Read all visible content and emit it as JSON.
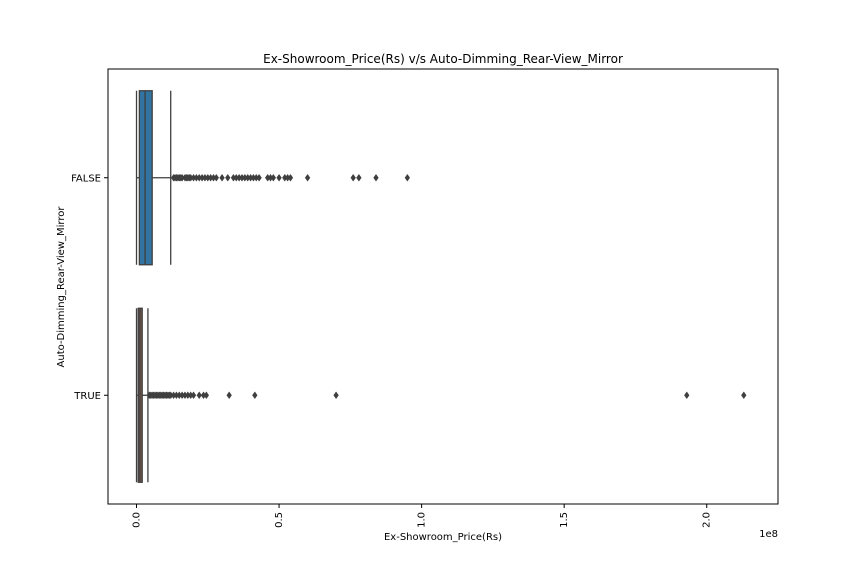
{
  "chart_data": {
    "type": "boxplot",
    "orientation": "horizontal",
    "title": "Ex-Showroom_Price(Rs) v/s Auto-Dimming_Rear-View_Mirror",
    "xlabel": "Ex-Showroom_Price(Rs)",
    "ylabel": "Auto-Dimming_Rear-View_Mirror",
    "x_offset_label": "1e8",
    "xlim": [
      -0.1,
      2.25
    ],
    "x_ticks": [
      {
        "value": 0.0,
        "label": "0.0"
      },
      {
        "value": 0.5,
        "label": "0.5"
      },
      {
        "value": 1.0,
        "label": "1.0"
      },
      {
        "value": 1.5,
        "label": "1.5"
      },
      {
        "value": 2.0,
        "label": "2.0"
      }
    ],
    "grid": false,
    "categories": [
      "FALSE",
      "TRUE"
    ],
    "series": [
      {
        "category": "FALSE",
        "color": "#3274a1",
        "whisker_low": 0.0,
        "q1": 0.01,
        "median": 0.03,
        "q3": 0.055,
        "whisker_high": 0.12,
        "outliers": [
          0.13,
          0.135,
          0.14,
          0.145,
          0.15,
          0.155,
          0.16,
          0.17,
          0.175,
          0.18,
          0.185,
          0.19,
          0.2,
          0.21,
          0.22,
          0.23,
          0.24,
          0.25,
          0.26,
          0.27,
          0.28,
          0.3,
          0.32,
          0.34,
          0.35,
          0.36,
          0.37,
          0.38,
          0.39,
          0.4,
          0.41,
          0.42,
          0.43,
          0.46,
          0.47,
          0.48,
          0.5,
          0.52,
          0.53,
          0.54,
          0.6,
          0.76,
          0.78,
          0.84,
          0.95
        ]
      },
      {
        "category": "TRUE",
        "color": "#7c5a4b",
        "whisker_low": 0.0,
        "q1": 0.006,
        "median": 0.012,
        "q3": 0.02,
        "whisker_high": 0.04,
        "outliers": [
          0.045,
          0.05,
          0.055,
          0.06,
          0.065,
          0.07,
          0.075,
          0.08,
          0.085,
          0.09,
          0.095,
          0.1,
          0.105,
          0.11,
          0.115,
          0.12,
          0.13,
          0.14,
          0.15,
          0.16,
          0.17,
          0.18,
          0.19,
          0.2,
          0.22,
          0.235,
          0.245,
          0.325,
          0.415,
          0.7,
          1.93,
          2.13
        ]
      }
    ]
  }
}
